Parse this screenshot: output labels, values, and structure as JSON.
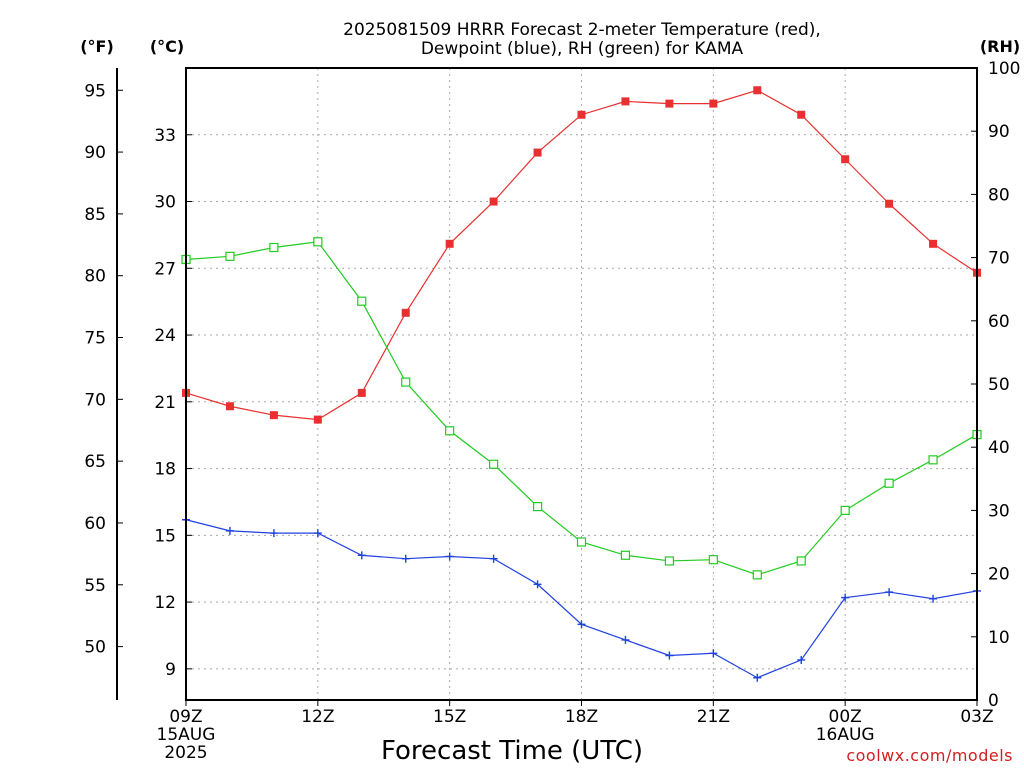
{
  "chart_data": {
    "type": "line",
    "title_line1": "2025081509 HRRR Forecast 2-meter Temperature (red),",
    "title_line2": "Dewpoint (blue), RH (green) for KAMA",
    "xlabel": "Forecast Time (UTC)",
    "credit": "coolwx.com/models",
    "units": {
      "fahrenheit": "(°F)",
      "celsius": "(°C)",
      "rh": "(RH)"
    },
    "x": [
      "09Z",
      "10Z",
      "11Z",
      "12Z",
      "13Z",
      "14Z",
      "15Z",
      "16Z",
      "17Z",
      "18Z",
      "19Z",
      "20Z",
      "21Z",
      "22Z",
      "23Z",
      "00Z",
      "01Z",
      "02Z",
      "03Z"
    ],
    "x_tick_labels": [
      {
        "index": 0,
        "lines": [
          "09Z",
          "15AUG",
          "2025"
        ]
      },
      {
        "index": 3,
        "lines": [
          "12Z"
        ]
      },
      {
        "index": 6,
        "lines": [
          "15Z"
        ]
      },
      {
        "index": 9,
        "lines": [
          "18Z"
        ]
      },
      {
        "index": 12,
        "lines": [
          "21Z"
        ]
      },
      {
        "index": 15,
        "lines": [
          "00Z",
          "16AUG"
        ]
      },
      {
        "index": 18,
        "lines": [
          "03Z"
        ]
      }
    ],
    "axes": {
      "celsius": {
        "lim": [
          7.6,
          36.0
        ],
        "ticks": [
          9,
          12,
          15,
          18,
          21,
          24,
          27,
          30,
          33
        ]
      },
      "fahrenheit": {
        "ticks": [
          50,
          55,
          60,
          65,
          70,
          75,
          80,
          85,
          90,
          95
        ]
      },
      "rh": {
        "lim": [
          0,
          100
        ],
        "ticks": [
          0,
          10,
          20,
          30,
          40,
          50,
          60,
          70,
          80,
          90,
          100
        ]
      }
    },
    "grid": true,
    "series": [
      {
        "name": "Temperature",
        "unit": "C",
        "color": "#e83030",
        "marker": "filled-square",
        "values": [
          21.4,
          20.8,
          20.4,
          20.2,
          21.4,
          25.0,
          28.1,
          30.0,
          32.2,
          33.9,
          34.5,
          34.4,
          34.4,
          35.0,
          33.9,
          31.9,
          29.9,
          28.1,
          26.8
        ]
      },
      {
        "name": "Dewpoint",
        "unit": "C",
        "color": "#2040e0",
        "marker": "plus",
        "values": [
          15.7,
          15.2,
          15.1,
          15.1,
          14.1,
          13.95,
          14.05,
          13.95,
          12.8,
          11.0,
          10.3,
          9.6,
          9.7,
          8.6,
          9.4,
          12.2,
          12.45,
          12.15,
          12.5
        ]
      },
      {
        "name": "RH",
        "unit": "%",
        "color": "#20cc20",
        "marker": "open-square",
        "values": [
          69.7,
          70.2,
          71.6,
          72.5,
          63.1,
          50.3,
          42.6,
          37.3,
          30.6,
          25.0,
          22.9,
          22.0,
          22.2,
          19.8,
          22.0,
          30.0,
          34.3,
          38.0,
          42.0
        ]
      }
    ]
  }
}
